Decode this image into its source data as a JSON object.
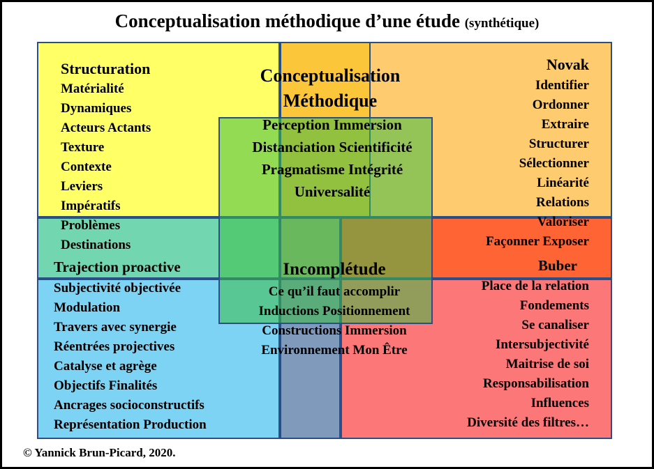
{
  "title": {
    "main": "Conceptualisation méthodique d’une étude",
    "sub": "(synthétique)"
  },
  "colors": {
    "yellow": "#ffff66",
    "orange": "#fecc6e",
    "teal": "#72d7b1",
    "red_orange": "#ff6435",
    "blue": "#7dd3f4",
    "red": "#fb7778",
    "green_overlay": "#55c83f",
    "border": "#2a4f87"
  },
  "structuration": {
    "heading": "Structuration",
    "items": [
      "Matérialité",
      "Dynamiques",
      "Acteurs Actants",
      "Texture",
      "Contexte",
      "Leviers",
      "Impératifs",
      "Problèmes",
      "Destinations"
    ]
  },
  "trajection": {
    "heading": "Trajection proactive",
    "items": [
      "Subjectivité objectivée",
      "Modulation",
      "Travers avec synergie",
      "Réentrées projectives",
      "Catalyse et agrège",
      "Objectifs Finalités",
      "Ancrages socioconstructifs",
      "Représentation Production"
    ]
  },
  "novak": {
    "heading": "Novak",
    "items": [
      "Identifier",
      "Ordonner",
      "Extraire",
      "Structurer",
      "Sélectionner",
      "Linéarité",
      "Relations",
      "Valoriser",
      "Façonner Exposer"
    ]
  },
  "buber": {
    "heading": "Buber",
    "items": [
      "Place de la relation",
      "Fondements",
      "Se canaliser",
      "Intersubjectivité",
      "Maitrise de soi",
      "Responsabilisation",
      "Influences",
      "Diversité des filtres…"
    ]
  },
  "center": {
    "heading_lines": [
      "Conceptualisation",
      "Méthodique"
    ],
    "items": [
      "Perception Immersion",
      "Distanciation Scientificité",
      "Pragmatisme Intégrité",
      "Universalité"
    ]
  },
  "incompletude": {
    "heading": "Incomplétude",
    "items": [
      "Ce qu’il faut accomplir",
      "Inductions Positionnement",
      "Constructions Immersion",
      "Environnement Mon Être"
    ]
  },
  "copyright": "© Yannick Brun-Picard, 2020."
}
